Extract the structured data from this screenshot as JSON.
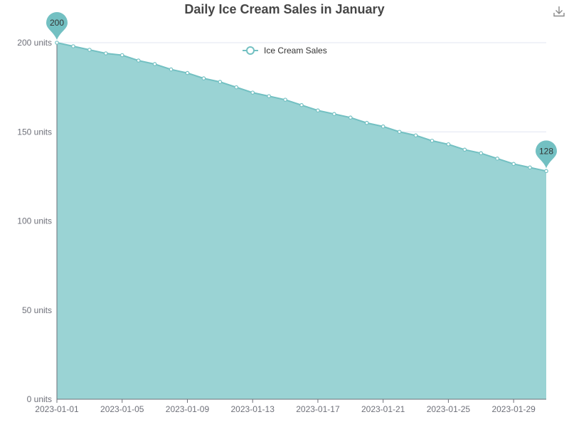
{
  "chart_data": {
    "type": "area",
    "title": "Daily Ice Cream Sales in January",
    "legend": {
      "entries": [
        "Ice Cream Sales"
      ],
      "position": "top-center"
    },
    "colors": {
      "series": "#73c0c2",
      "area": "#9ad3d4",
      "text": "#464646",
      "axis": "#6e7079"
    },
    "x": [
      "2023-01-01",
      "2023-01-02",
      "2023-01-03",
      "2023-01-04",
      "2023-01-05",
      "2023-01-06",
      "2023-01-07",
      "2023-01-08",
      "2023-01-09",
      "2023-01-10",
      "2023-01-11",
      "2023-01-12",
      "2023-01-13",
      "2023-01-14",
      "2023-01-15",
      "2023-01-16",
      "2023-01-17",
      "2023-01-18",
      "2023-01-19",
      "2023-01-20",
      "2023-01-21",
      "2023-01-22",
      "2023-01-23",
      "2023-01-24",
      "2023-01-25",
      "2023-01-26",
      "2023-01-27",
      "2023-01-28",
      "2023-01-29",
      "2023-01-30",
      "2023-01-31"
    ],
    "series": [
      {
        "name": "Ice Cream Sales",
        "values": [
          200,
          198,
          196,
          194,
          193,
          190,
          188,
          185,
          183,
          180,
          178,
          175,
          172,
          170,
          168,
          165,
          162,
          160,
          158,
          155,
          153,
          150,
          148,
          145,
          143,
          140,
          138,
          135,
          132,
          130,
          128
        ]
      }
    ],
    "x_tick_labels": [
      "2023-01-01",
      "2023-01-05",
      "2023-01-09",
      "2023-01-13",
      "2023-01-17",
      "2023-01-21",
      "2023-01-25",
      "2023-01-29"
    ],
    "y_tick_labels": [
      "0 units",
      "50 units",
      "100 units",
      "150 units",
      "200 units"
    ],
    "y_ticks": [
      0,
      50,
      100,
      150,
      200
    ],
    "ylim": [
      0,
      200
    ],
    "grid": true,
    "markers": {
      "max_label": "200",
      "min_label": "128"
    }
  },
  "toolbox": {
    "download_icon": "download-icon"
  }
}
